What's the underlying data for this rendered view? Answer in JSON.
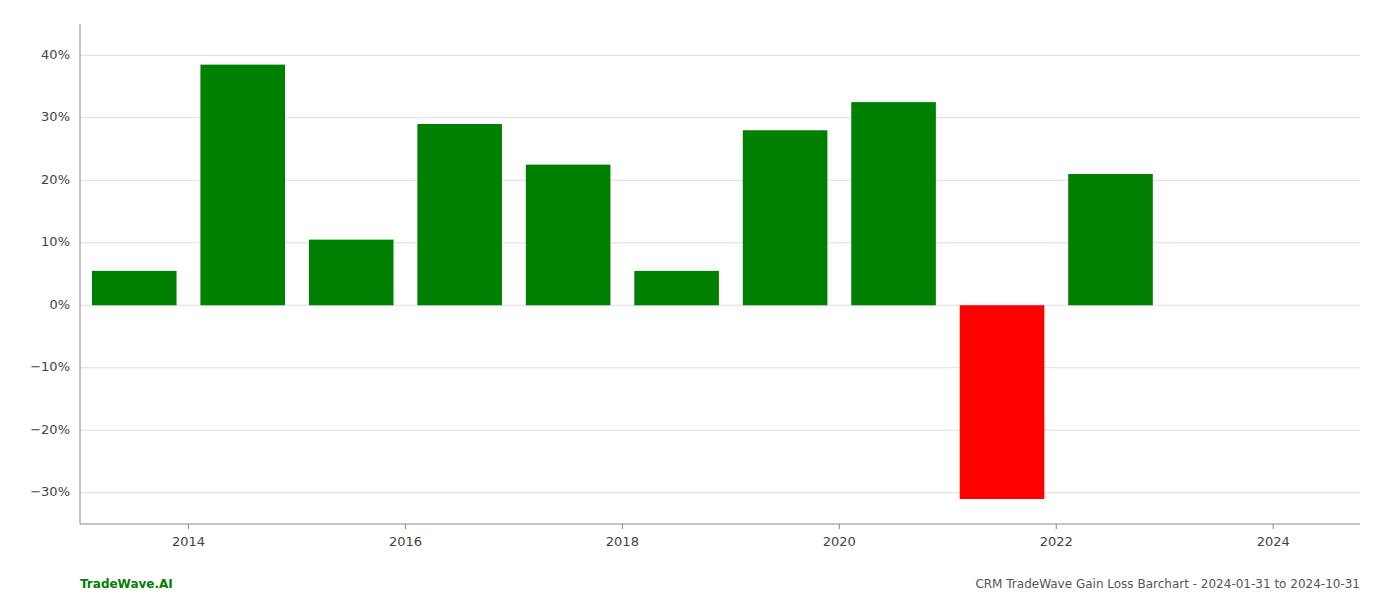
{
  "chart_data": {
    "type": "bar",
    "x": [
      2013.5,
      2014.5,
      2015.5,
      2016.5,
      2017.5,
      2018.5,
      2019.5,
      2020.5,
      2021.5,
      2022.5
    ],
    "values": [
      5.5,
      38.5,
      10.5,
      29.0,
      22.5,
      5.5,
      28.0,
      32.5,
      -31.0,
      21.0
    ],
    "colors": [
      "#008000",
      "#008000",
      "#008000",
      "#008000",
      "#008000",
      "#008000",
      "#008000",
      "#008000",
      "#ff0000",
      "#008000"
    ],
    "xlim": [
      2013.0,
      2024.8
    ],
    "xticks": [
      2014,
      2016,
      2018,
      2020,
      2022,
      2024
    ],
    "ylim": [
      -35,
      45
    ],
    "yticks": [
      {
        "value": -30,
        "label": "−30%"
      },
      {
        "value": -20,
        "label": "−20%"
      },
      {
        "value": -10,
        "label": "−10%"
      },
      {
        "value": 0,
        "label": "0%"
      },
      {
        "value": 10,
        "label": "10%"
      },
      {
        "value": 20,
        "label": "20%"
      },
      {
        "value": 30,
        "label": "30%"
      },
      {
        "value": 40,
        "label": "40%"
      }
    ],
    "grid": true,
    "annotations": [
      {
        "text": "TradeWave.AI",
        "color": "#008000"
      },
      {
        "text": "CRM TradeWave Gain Loss Barchart - 2024-01-31 to 2024-10-31",
        "color": "#555555"
      }
    ]
  }
}
